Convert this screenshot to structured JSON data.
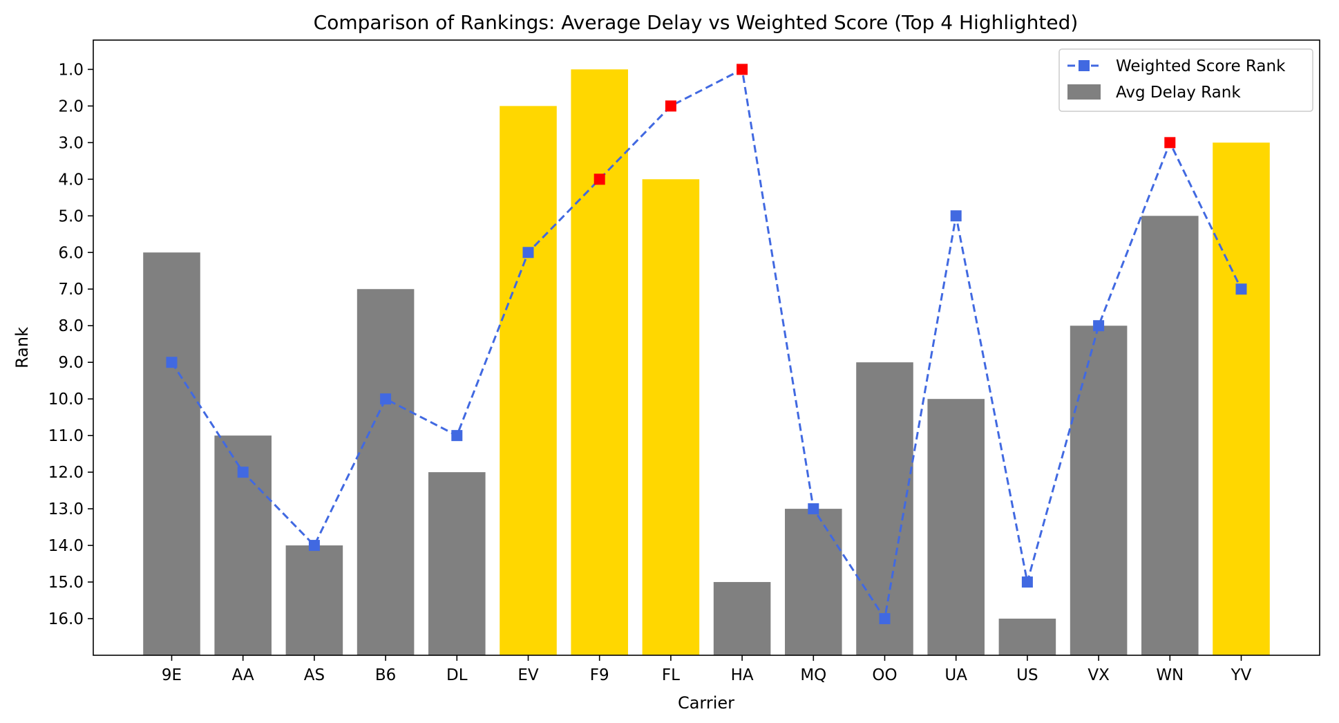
{
  "chart_data": {
    "type": "bar",
    "title": "Comparison of Rankings: Average Delay vs Weighted Score (Top 4 Highlighted)",
    "xlabel": "Carrier",
    "ylabel": "Rank",
    "y_inverted": true,
    "ylim": [
      17,
      0.2
    ],
    "yticks": [
      "1.0",
      "2.0",
      "3.0",
      "4.0",
      "5.0",
      "6.0",
      "7.0",
      "8.0",
      "9.0",
      "10.0",
      "11.0",
      "12.0",
      "13.0",
      "14.0",
      "15.0",
      "16.0"
    ],
    "categories": [
      "9E",
      "AA",
      "AS",
      "B6",
      "DL",
      "EV",
      "F9",
      "FL",
      "HA",
      "MQ",
      "OO",
      "UA",
      "US",
      "VX",
      "WN",
      "YV"
    ],
    "series": [
      {
        "name": "Avg Delay Rank",
        "kind": "bar",
        "values": [
          6,
          11,
          14,
          7,
          12,
          2,
          1,
          4,
          15,
          13,
          9,
          10,
          16,
          8,
          5,
          3
        ],
        "highlight": [
          false,
          false,
          false,
          false,
          false,
          true,
          true,
          true,
          false,
          false,
          false,
          false,
          false,
          false,
          false,
          true
        ]
      },
      {
        "name": "Weighted Score Rank",
        "kind": "line",
        "values": [
          9,
          12,
          14,
          10,
          11,
          6,
          4,
          2,
          1,
          13,
          16,
          5,
          15,
          8,
          3,
          7
        ],
        "highlight": [
          false,
          false,
          false,
          false,
          false,
          false,
          true,
          true,
          true,
          false,
          false,
          false,
          false,
          false,
          true,
          false
        ]
      }
    ],
    "legend": {
      "position": "top-right",
      "entries": [
        "Weighted Score Rank",
        "Avg Delay Rank"
      ]
    },
    "colors": {
      "bar": "#808080",
      "bar_highlight": "#FFD700",
      "line": "#4169E1",
      "marker_highlight": "#FF0000"
    },
    "grid": false
  }
}
